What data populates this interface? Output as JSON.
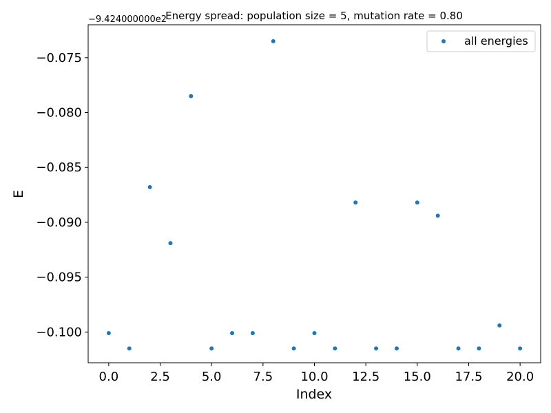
{
  "chart_data": {
    "type": "scatter",
    "title": "Energy spread: population size = 5, mutation rate = 0.80",
    "xlabel": "Index",
    "ylabel": "E",
    "y_offset_text": "−9.424000000e2",
    "xlim": [
      -1.0,
      21.0
    ],
    "ylim": [
      -0.1028,
      -0.072
    ],
    "x_ticks": [
      0.0,
      2.5,
      5.0,
      7.5,
      10.0,
      12.5,
      15.0,
      17.5,
      20.0
    ],
    "x_tick_labels": [
      "0.0",
      "2.5",
      "5.0",
      "7.5",
      "10.0",
      "12.5",
      "15.0",
      "17.5",
      "20.0"
    ],
    "y_ticks": [
      -0.075,
      -0.08,
      -0.085,
      -0.09,
      -0.095,
      -0.1
    ],
    "y_tick_labels": [
      "−0.075",
      "−0.080",
      "−0.085",
      "−0.090",
      "−0.095",
      "−0.100"
    ],
    "grid": false,
    "legend_position": "top-right",
    "series": [
      {
        "name": "all energies",
        "color": "#1f77b4",
        "x": [
          0,
          1,
          2,
          3,
          4,
          5,
          6,
          7,
          8,
          9,
          10,
          11,
          12,
          13,
          14,
          15,
          16,
          17,
          18,
          19,
          20
        ],
        "y": [
          -0.1001,
          -0.1015,
          -0.0868,
          -0.0919,
          -0.0785,
          -0.1015,
          -0.1001,
          -0.1001,
          -0.0735,
          -0.1015,
          -0.1001,
          -0.1015,
          -0.0882,
          -0.1015,
          -0.1015,
          -0.0882,
          -0.0894,
          -0.1015,
          -0.1015,
          -0.0994,
          -0.1015
        ]
      }
    ]
  }
}
